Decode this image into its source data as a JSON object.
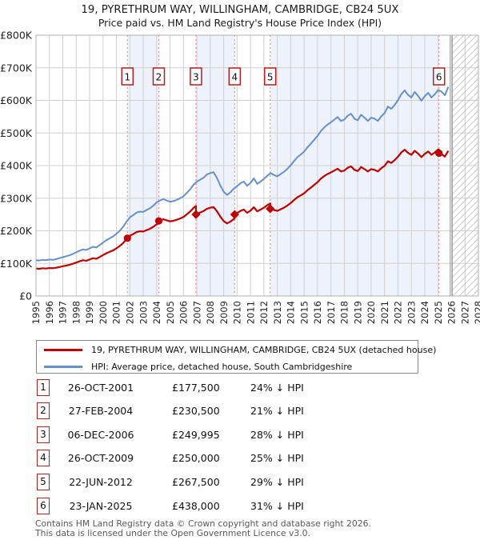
{
  "title": {
    "line1": "19, PYRETHRUM WAY, WILLINGHAM, CAMBRIDGE, CB24 5UX",
    "line2": "Price paid vs. HM Land Registry's House Price Index (HPI)"
  },
  "legend": {
    "property_label": "19, PYRETHRUM WAY, WILLINGHAM, CAMBRIDGE, CB24 5UX (detached house)",
    "hpi_label": "HPI: Average price, detached house, South Cambridgeshire"
  },
  "table": {
    "rows": [
      {
        "num": "1",
        "date": "26-OCT-2001",
        "price": "£177,500",
        "vs_hpi": "24% ↓ HPI"
      },
      {
        "num": "2",
        "date": "27-FEB-2004",
        "price": "£230,500",
        "vs_hpi": "21% ↓ HPI"
      },
      {
        "num": "3",
        "date": "06-DEC-2006",
        "price": "£249,995",
        "vs_hpi": "28% ↓ HPI"
      },
      {
        "num": "4",
        "date": "26-OCT-2009",
        "price": "£250,000",
        "vs_hpi": "25% ↓ HPI"
      },
      {
        "num": "5",
        "date": "22-JUN-2012",
        "price": "£267,500",
        "vs_hpi": "29% ↓ HPI"
      },
      {
        "num": "6",
        "date": "23-JAN-2025",
        "price": "£438,000",
        "vs_hpi": "31% ↓ HPI"
      }
    ]
  },
  "footer": {
    "line1": "Contains HM Land Registry data © Crown copyright and database right 2026.",
    "line2": "This data is licensed under the Open Government Licence v3.0."
  },
  "colors": {
    "property_line": "#c00000",
    "hpi_line": "#6690c6",
    "sale_dotted_line": "#f39090",
    "shaded_band": "#edf2fb",
    "grid": "#d0d0d0",
    "plot_border": "#b0b0b0",
    "hatch": "#c8c8c8",
    "number_box_border": "#b51f1f",
    "axis_text": "#222222"
  },
  "chart_data": {
    "type": "line",
    "title": "Price paid vs. HM Land Registry's House Price Index (HPI)",
    "x_axis": {
      "min": 1995,
      "max": 2028,
      "tick_interval": 1,
      "labels_rotated": true
    },
    "y_axis": {
      "min": 0,
      "max": 800,
      "tick_interval": 100,
      "unit": "£K",
      "tick_labels": [
        "£0",
        "£100K",
        "£200K",
        "£300K",
        "£400K",
        "£500K",
        "£600K",
        "£700K",
        "£800K"
      ]
    },
    "grid": true,
    "legend_position": "below",
    "hpi_series": {
      "name": "HPI: Average price, detached house, South Cambridgeshire",
      "unit": "£K",
      "start_year": 1995,
      "step_years": 0.25,
      "values": [
        110,
        109,
        111,
        110,
        112,
        111,
        113,
        116,
        119,
        122,
        125,
        129,
        134,
        139,
        143,
        141,
        146,
        151,
        149,
        156,
        164,
        171,
        177,
        183,
        191,
        200,
        212,
        228,
        241,
        248,
        256,
        259,
        258,
        264,
        269,
        277,
        287,
        293,
        297,
        293,
        289,
        291,
        295,
        300,
        306,
        316,
        327,
        341,
        351,
        357,
        363,
        373,
        377,
        380,
        362,
        339,
        320,
        310,
        318,
        329,
        337,
        346,
        351,
        338,
        347,
        361,
        344,
        351,
        359,
        369,
        377,
        371,
        367,
        374,
        381,
        390,
        401,
        414,
        426,
        434,
        443,
        456,
        467,
        479,
        491,
        506,
        517,
        526,
        533,
        541,
        549,
        537,
        541,
        553,
        559,
        544,
        539,
        556,
        547,
        537,
        547,
        544,
        537,
        551,
        561,
        581,
        574,
        586,
        601,
        619,
        631,
        617,
        609,
        626,
        614,
        599,
        613,
        623,
        609,
        619,
        632,
        627,
        616,
        641
      ]
    },
    "price_series": {
      "name": "19, PYRETHRUM WAY, WILLINGHAM, CAMBRIDGE, CB24 5UX (detached house)",
      "derivation": "segment-wise HPI series rescaled through each sale price; jumps at sale dates"
    },
    "sales": [
      {
        "label": "1",
        "date": "26-OCT-2001",
        "year": 2001.82,
        "price_k": 177.5,
        "pct_below_hpi": 24,
        "marker": "circle"
      },
      {
        "label": "2",
        "date": "27-FEB-2004",
        "year": 2004.16,
        "price_k": 230.5,
        "pct_below_hpi": 21,
        "marker": "circle"
      },
      {
        "label": "3",
        "date": "06-DEC-2006",
        "year": 2006.93,
        "price_k": 249.995,
        "pct_below_hpi": 28,
        "marker": "diamond"
      },
      {
        "label": "4",
        "date": "26-OCT-2009",
        "year": 2009.82,
        "price_k": 250.0,
        "pct_below_hpi": 25,
        "marker": "diamond"
      },
      {
        "label": "5",
        "date": "22-JUN-2012",
        "year": 2012.47,
        "price_k": 267.5,
        "pct_below_hpi": 29,
        "marker": "diamond"
      },
      {
        "label": "6",
        "date": "23-JAN-2025",
        "year": 2025.06,
        "price_k": 438.0,
        "pct_below_hpi": 31,
        "marker": "circle"
      }
    ],
    "shaded_spans_between_sales": [
      [
        0,
        1
      ],
      [
        2,
        3
      ],
      [
        4,
        5
      ]
    ],
    "future_hatch_from_year": 2026.05
  }
}
